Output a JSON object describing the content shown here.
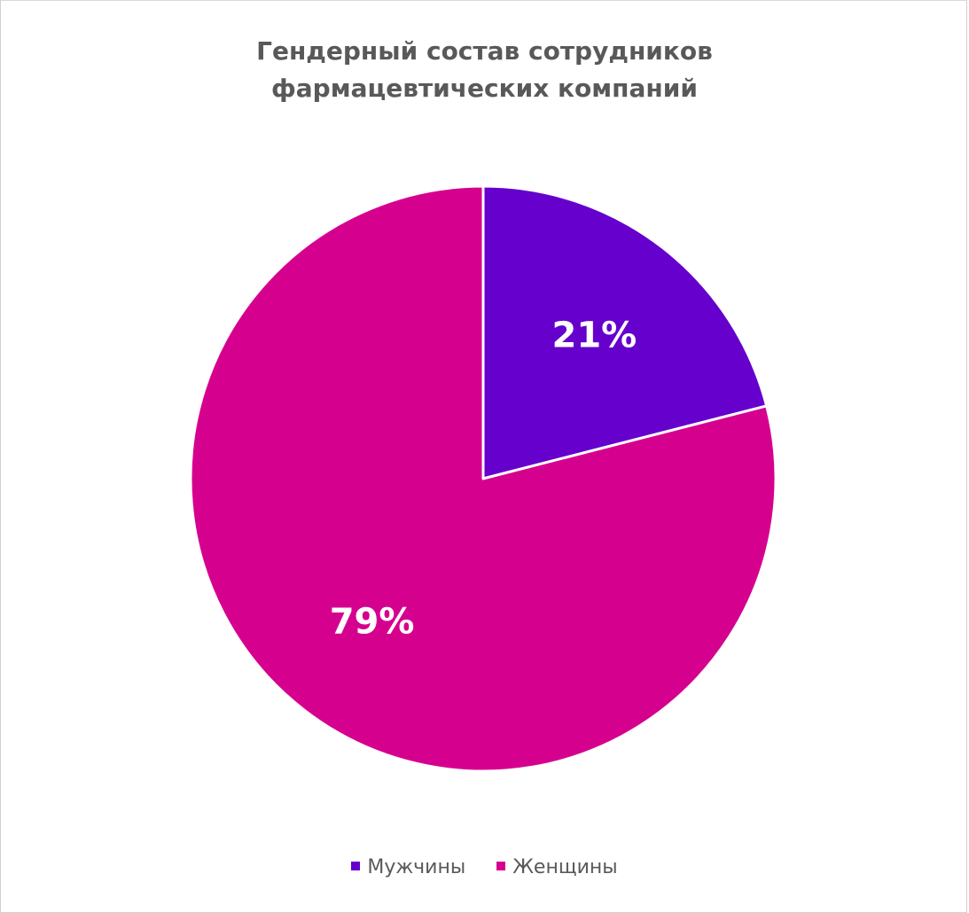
{
  "chart_data": {
    "type": "pie",
    "title_lines": [
      "Гендерный состав сотрудников",
      "фармацевтических компаний"
    ],
    "categories": [
      "Мужчины",
      "Женщины"
    ],
    "values": [
      21,
      79
    ],
    "labels": [
      "21%",
      "79%"
    ],
    "colors": [
      "#6600CC",
      "#D6008F"
    ],
    "start_angle": "12 o'clock",
    "direction": "clockwise",
    "legend_position": "bottom"
  }
}
